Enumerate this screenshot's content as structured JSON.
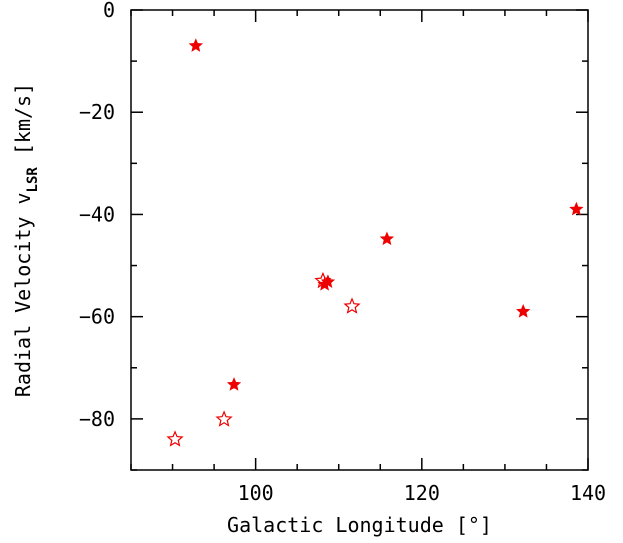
{
  "chart_data": {
    "type": "scatter",
    "xlabel": "Galactic Longitude [°]",
    "ylabel_main": "Radial Velocity v",
    "ylabel_sub": "LSR",
    "ylabel_unit": " [km/s]",
    "xlim": [
      85,
      140
    ],
    "ylim": [
      -90,
      0
    ],
    "xticks": [
      100,
      120,
      140
    ],
    "yticks": [
      0,
      -20,
      -40,
      -60,
      -80
    ],
    "x_minor_step": 5,
    "y_minor_step": 10,
    "grid": false,
    "marker_color": "#ee0000",
    "series": [
      {
        "marker": "filled-star",
        "points": [
          {
            "x": 92.8,
            "y": -7
          },
          {
            "x": 97.4,
            "y": -73.3
          },
          {
            "x": 108.3,
            "y": -53.7
          },
          {
            "x": 108.7,
            "y": -53.2
          },
          {
            "x": 115.8,
            "y": -44.8
          },
          {
            "x": 132.2,
            "y": -59
          },
          {
            "x": 138.6,
            "y": -39
          }
        ]
      },
      {
        "marker": "open-star",
        "points": [
          {
            "x": 90.3,
            "y": -84
          },
          {
            "x": 96.2,
            "y": -80.1
          },
          {
            "x": 108.1,
            "y": -53
          },
          {
            "x": 111.6,
            "y": -58
          }
        ]
      }
    ]
  }
}
